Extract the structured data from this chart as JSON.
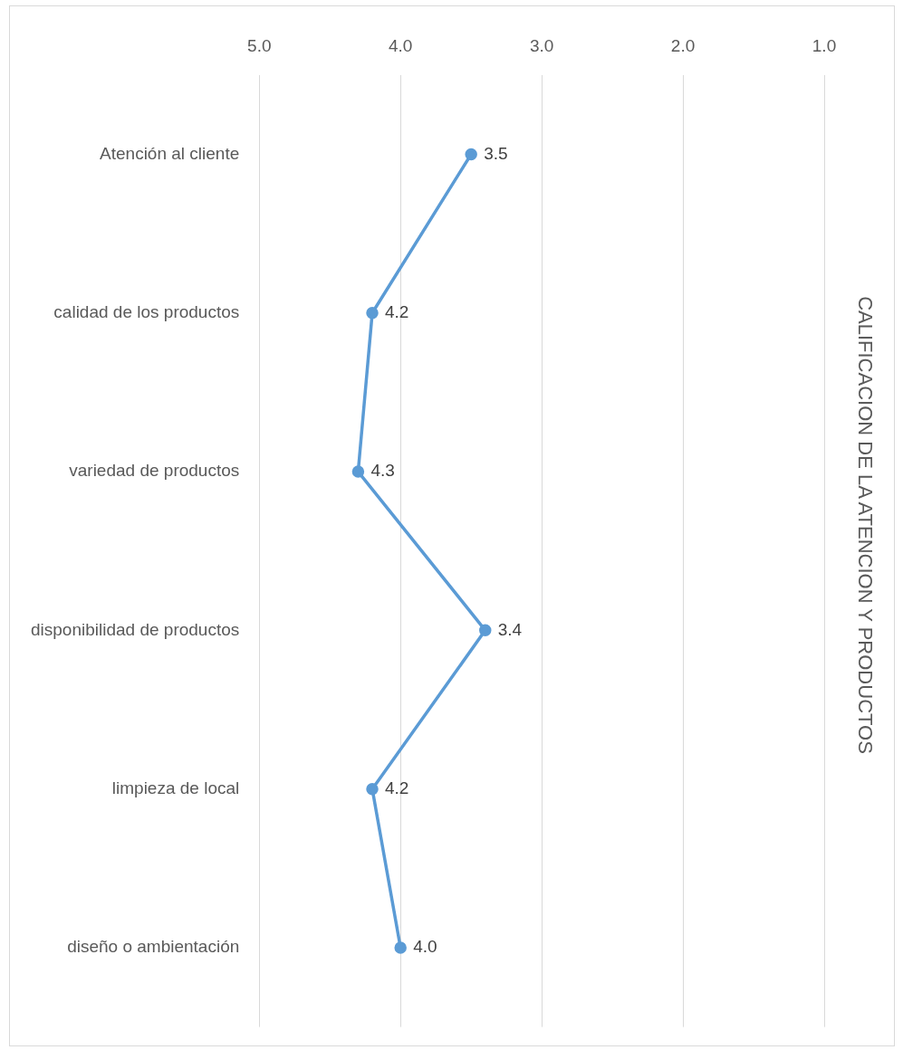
{
  "chart_data": {
    "type": "line",
    "orientation": "horizontal",
    "title": "CALIFICACION DE LA ATENCION Y PRODUCTOS",
    "categories": [
      "Atención al cliente",
      "calidad de los productos",
      "variedad de productos",
      "disponibilidad de productos",
      "limpieza de local",
      "diseño o ambientación"
    ],
    "series": [
      {
        "color": "#5b9bd5",
        "values": [
          3.5,
          4.2,
          4.3,
          3.4,
          4.2,
          4.0
        ],
        "value_labels": [
          "3.5",
          "4.2",
          "4.3",
          "3.4",
          "4.2",
          "4.0"
        ]
      }
    ],
    "xlim": [
      5,
      1
    ],
    "xticks": [
      {
        "value": 5,
        "label": "5.0"
      },
      {
        "value": 4,
        "label": "4.0"
      },
      {
        "value": 3,
        "label": "3.0"
      },
      {
        "value": 2,
        "label": "2.0"
      },
      {
        "value": 1,
        "label": "1.0"
      }
    ],
    "grid": "x",
    "marker": "circle",
    "legend": false
  }
}
